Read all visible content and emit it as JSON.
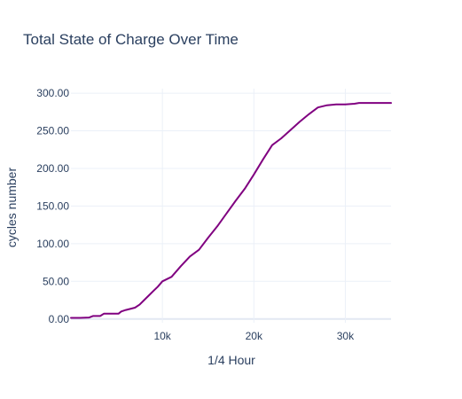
{
  "chart_data": {
    "type": "line",
    "title": "Total State of Charge Over Time",
    "xlabel": "1/4 Hour",
    "ylabel": "cycles number",
    "xlim": [
      0,
      35000
    ],
    "ylim": [
      -5,
      306
    ],
    "x_ticks": [
      10000,
      20000,
      30000
    ],
    "x_tick_labels": [
      "10k",
      "20k",
      "30k"
    ],
    "y_ticks": [
      0,
      50,
      100,
      150,
      200,
      250,
      300
    ],
    "y_tick_labels": [
      "0.00",
      "50.00",
      "100.00",
      "150.00",
      "200.00",
      "250.00",
      "300.00"
    ],
    "grid": true,
    "series": [
      {
        "color": "#800080",
        "x": [
          0,
          1000,
          2000,
          2400,
          3200,
          3600,
          5200,
          5500,
          6000,
          7000,
          7500,
          8000,
          8500,
          9000,
          9500,
          10000,
          11000,
          12000,
          13000,
          14000,
          15000,
          16000,
          17000,
          18000,
          19000,
          20000,
          21000,
          22000,
          23000,
          24000,
          25000,
          26000,
          27000,
          28000,
          29000,
          30000,
          31000,
          31500,
          35000
        ],
        "values": [
          1.5,
          1.5,
          2,
          4,
          4,
          7,
          7,
          10,
          12,
          15,
          19,
          25,
          31,
          37,
          43,
          50,
          56,
          70,
          83,
          92,
          108,
          123,
          140,
          157,
          173,
          192,
          212,
          231,
          240,
          251,
          262,
          272,
          281,
          284,
          285,
          285,
          286,
          287,
          287
        ]
      }
    ]
  }
}
